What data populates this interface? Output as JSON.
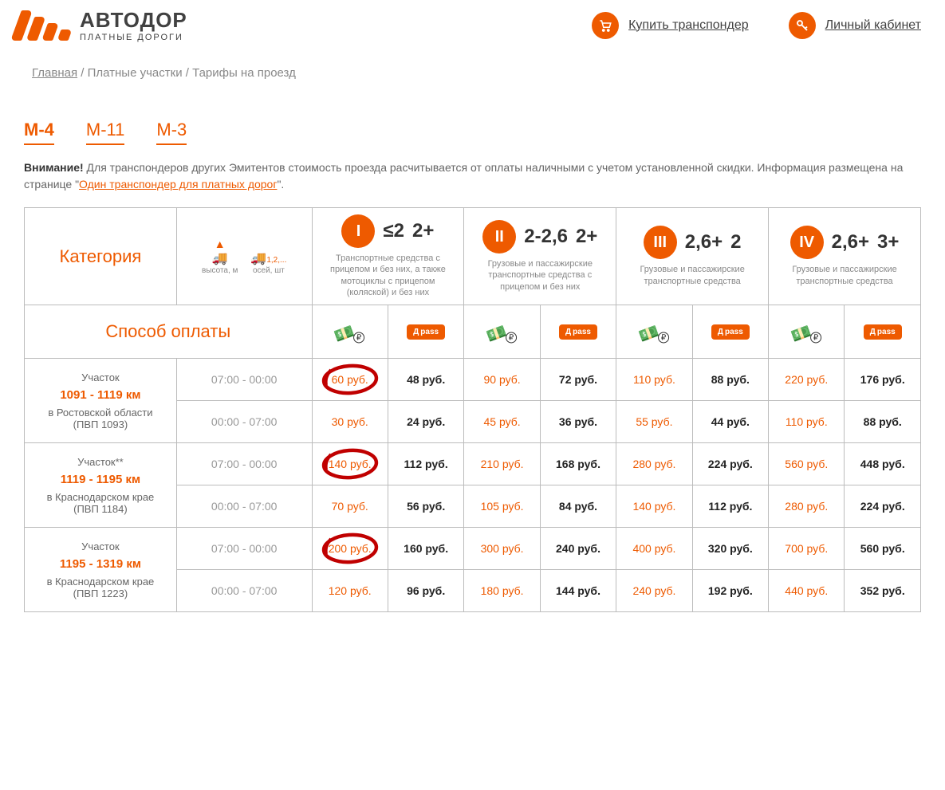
{
  "colors": {
    "accent": "#ee5a00",
    "text": "#333333",
    "muted": "#888888",
    "border": "#bcbcbc",
    "annotation": "#c00000"
  },
  "header": {
    "logo_title": "АВТОДОР",
    "logo_subtitle": "ПЛАТНЫЕ ДОРОГИ",
    "links": {
      "buy": "Купить транспондер",
      "cabinet": "Личный кабинет"
    }
  },
  "breadcrumb": {
    "home": "Главная",
    "level1": "Платные участки",
    "level2": "Тарифы на проезд"
  },
  "tabs": {
    "t0": "М-4",
    "t1": "М-11",
    "t2": "М-3"
  },
  "notice": {
    "bold": "Внимание!",
    "text": " Для транспондеров других Эмитентов стоимость проезда расчитывается от оплаты наличными с учетом установленной скидки. Информация размещена на странице \"",
    "link": "Один транспондер для платных дорог",
    "tail": "\"."
  },
  "table": {
    "category_label": "Категория",
    "icons": {
      "height_label": "высота, м",
      "axles_label": "осей, шт",
      "axles_val": "1,2,..."
    },
    "cats": {
      "c1": {
        "badge": "I",
        "v1": "≤2",
        "v2": "2+",
        "desc": "Транспортные средства с прицепом и без них, а также мотоциклы с прицепом (коляской) и без них"
      },
      "c2": {
        "badge": "II",
        "v1": "2-2,6",
        "v2": "2+",
        "desc": "Грузовые и пассажирские транспортные средства с прицепом и без них"
      },
      "c3": {
        "badge": "III",
        "v1": "2,6+",
        "v2": "2",
        "desc": "Грузовые и пассажирские транспортные средства"
      },
      "c4": {
        "badge": "IV",
        "v1": "2,6+",
        "v2": "3+",
        "desc": "Грузовые и пассажирские транспортные средства"
      }
    },
    "pay_label": "Способ оплаты",
    "pass_badge": "pass",
    "segments": [
      {
        "title": "Участок",
        "km": "1091 - 1119 км",
        "loc1": "в Ростовской области",
        "loc2": "(ПВП 1093)",
        "rows": [
          {
            "time": "07:00 - 00:00",
            "p": [
              "60 руб.",
              "48 руб.",
              "90 руб.",
              "72 руб.",
              "110 руб.",
              "88 руб.",
              "220 руб.",
              "176 руб."
            ],
            "circled": 0
          },
          {
            "time": "00:00 - 07:00",
            "p": [
              "30 руб.",
              "24 руб.",
              "45 руб.",
              "36 руб.",
              "55 руб.",
              "44 руб.",
              "110 руб.",
              "88 руб."
            ]
          }
        ]
      },
      {
        "title": "Участок**",
        "km": "1119 - 1195 км",
        "loc1": "в Краснодарском крае",
        "loc2": "(ПВП 1184)",
        "rows": [
          {
            "time": "07:00 - 00:00",
            "p": [
              "140 руб.",
              "112 руб.",
              "210 руб.",
              "168 руб.",
              "280 руб.",
              "224 руб.",
              "560 руб.",
              "448 руб."
            ],
            "circled": 0
          },
          {
            "time": "00:00 - 07:00",
            "p": [
              "70 руб.",
              "56 руб.",
              "105 руб.",
              "84 руб.",
              "140 руб.",
              "112 руб.",
              "280 руб.",
              "224 руб."
            ]
          }
        ]
      },
      {
        "title": "Участок",
        "km": "1195 - 1319 км",
        "loc1": "в Краснодарском крае",
        "loc2": "(ПВП 1223)",
        "rows": [
          {
            "time": "07:00 - 00:00",
            "p": [
              "200 руб.",
              "160 руб.",
              "300 руб.",
              "240 руб.",
              "400 руб.",
              "320 руб.",
              "700 руб.",
              "560 руб."
            ],
            "circled": 0
          },
          {
            "time": "00:00 - 07:00",
            "p": [
              "120 руб.",
              "96 руб.",
              "180 руб.",
              "144 руб.",
              "240 руб.",
              "192 руб.",
              "440 руб.",
              "352 руб."
            ]
          }
        ]
      }
    ]
  }
}
